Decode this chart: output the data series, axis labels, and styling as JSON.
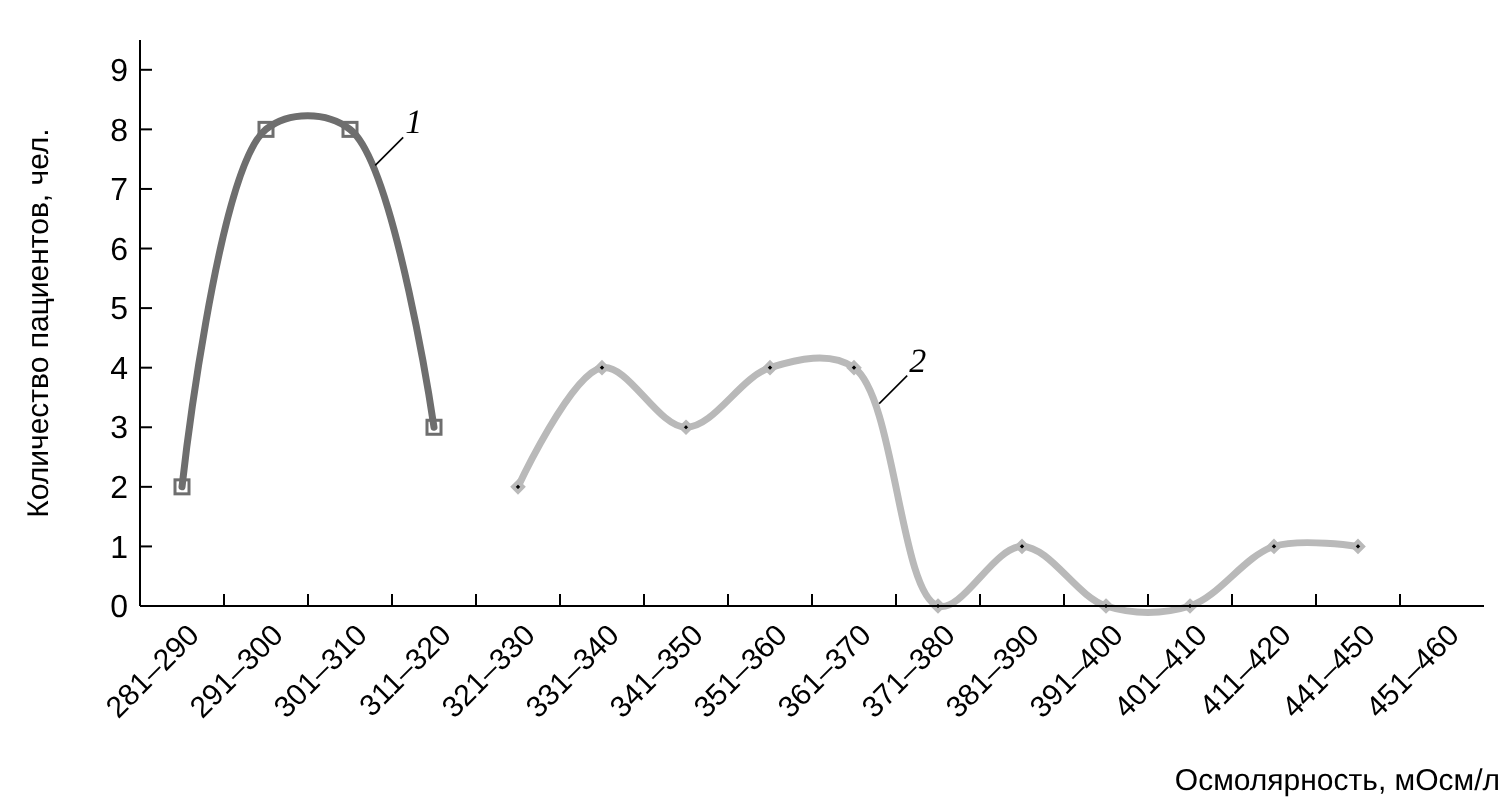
{
  "chart_data": {
    "type": "line",
    "xlabel": "Осмолярность, мОсм/л",
    "ylabel": "Количество пациентов, чел.",
    "categories": [
      "281–290",
      "291–300",
      "301–310",
      "311–320",
      "321–330",
      "331–340",
      "341–350",
      "351–360",
      "361–370",
      "371–380",
      "381–390",
      "391–400",
      "401–410",
      "411–420",
      "441–450",
      "451–460"
    ],
    "series": [
      {
        "name": "1",
        "color": "#6e6e6e",
        "marker": "square",
        "values": [
          2,
          8,
          8,
          3,
          null,
          null,
          null,
          null,
          null,
          null,
          null,
          null,
          null,
          null,
          null,
          null
        ]
      },
      {
        "name": "2",
        "color": "#b9b9b9",
        "marker": "diamond",
        "values": [
          null,
          null,
          null,
          null,
          2,
          4,
          3,
          4,
          4,
          0,
          1,
          0,
          0,
          1,
          1,
          null
        ]
      }
    ],
    "ylim": [
      0,
      9.5
    ],
    "yticks": [
      0,
      1,
      2,
      3,
      4,
      5,
      6,
      7,
      8,
      9
    ],
    "grid": false
  }
}
